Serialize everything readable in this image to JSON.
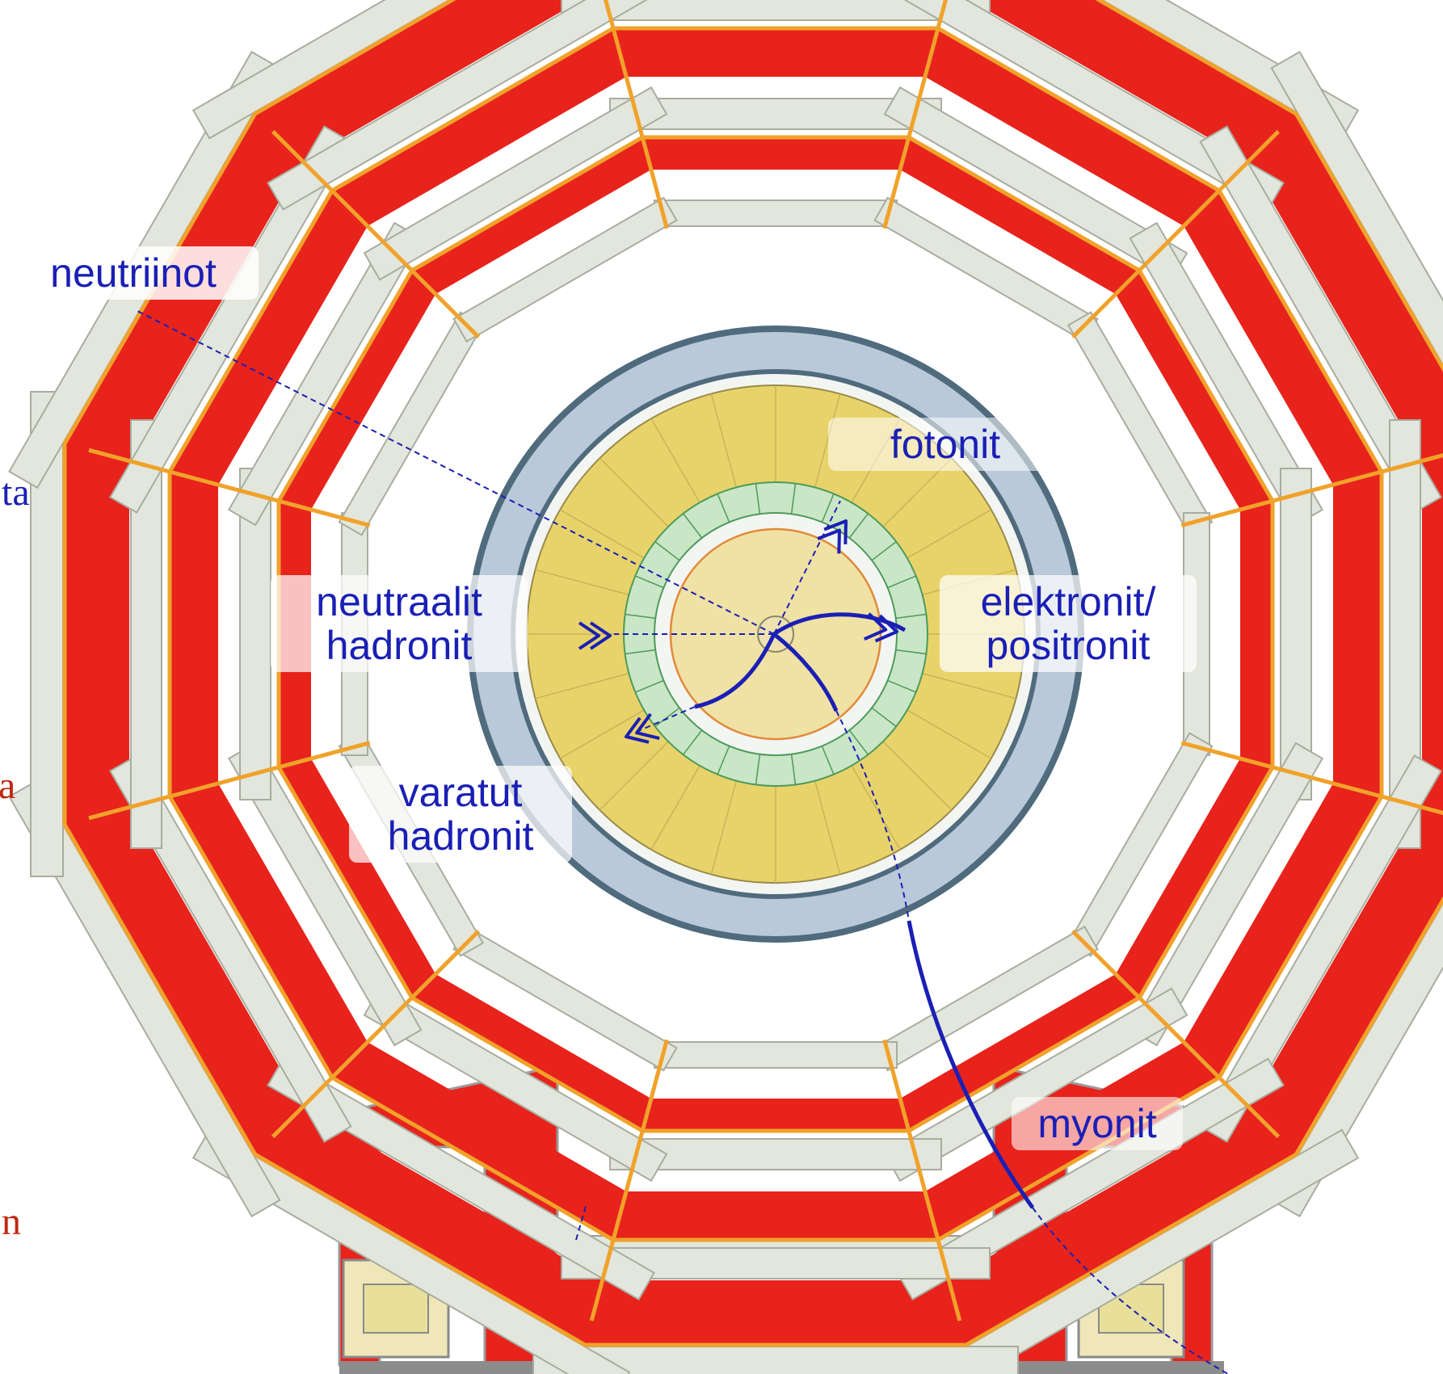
{
  "colors": {
    "tracks": "#1a1fb5",
    "magnet_return_yoke": "#e8231c",
    "muon_chambers": "#e3e6dc",
    "support_connectors": "#f0a22a",
    "solenoid": "#b9c9d9",
    "hadron_calorimeter": "#e8d36a",
    "em_calorimeter": "#c9e6c6",
    "tracker": "#f0e1a4",
    "clipped_text_blue": "#1a1fb5",
    "clipped_text_red": "#c0280f"
  },
  "labels": {
    "neutrinos": "neutriinot",
    "photons": "fotonit",
    "electrons_line1": "elektronit/",
    "electrons_line2": "positronit",
    "neutral_hadrons_line1": "neutraalit",
    "neutral_hadrons_line2": "hadronit",
    "charged_hadrons_line1": "varatut",
    "charged_hadrons_line2": "hadronit",
    "muons": "myonit"
  },
  "clipped_text": {
    "fragment_1": "ta",
    "fragment_2": "a",
    "fragment_3": "n"
  }
}
